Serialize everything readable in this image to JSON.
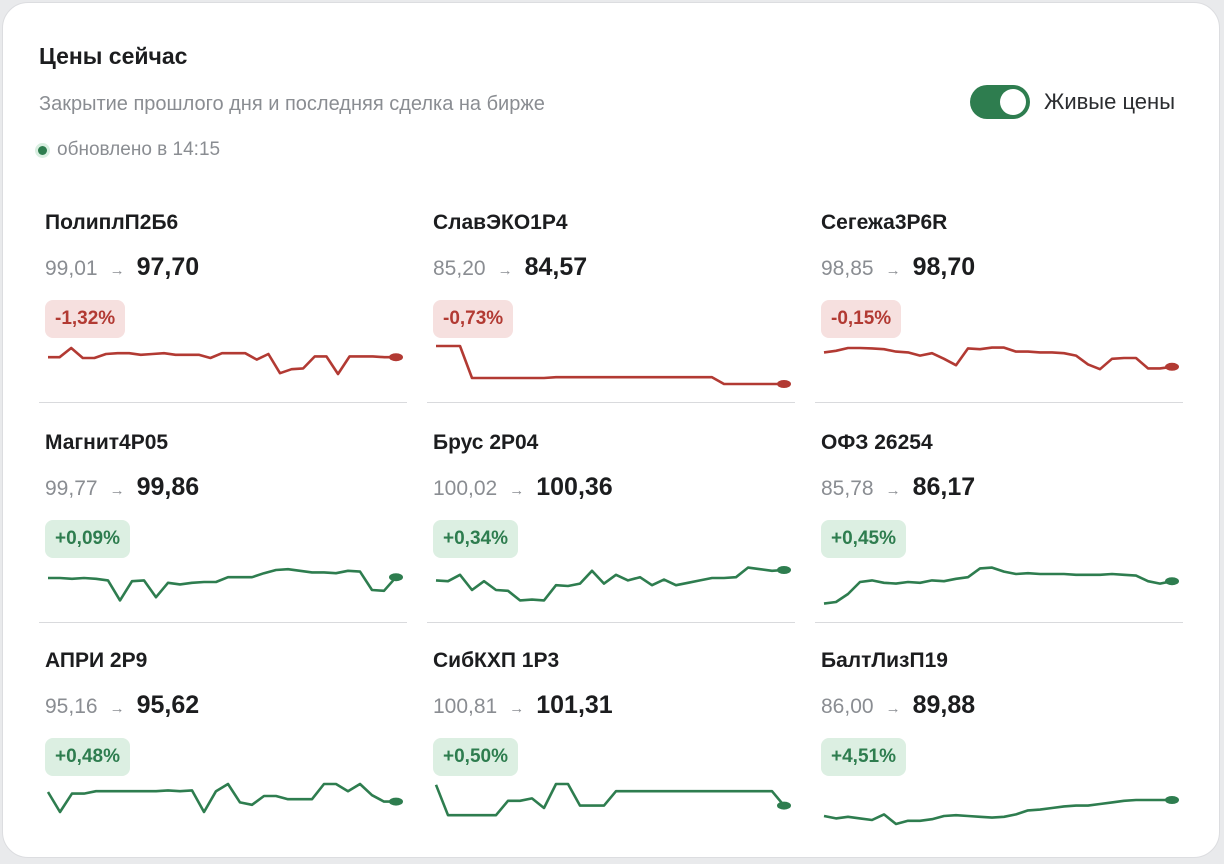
{
  "header": {
    "title": "Цены сейчас",
    "subtitle": "Закрытие прошлого дня и последняя сделка на бирже",
    "updated": "обновлено в 14:15",
    "live_toggle_label": "Живые цены",
    "live_toggle_on": true
  },
  "colors": {
    "negative": "#b23a33",
    "positive": "#2e7d4f",
    "negative_bg": "#f6e0df",
    "positive_bg": "#dcefe2"
  },
  "bonds": [
    {
      "name": "ПолиплП2Б6",
      "prev": "99,01",
      "last": "97,70",
      "change": "-1,32%",
      "direction": "neg",
      "spark": [
        0.72,
        0.72,
        0.95,
        0.7,
        0.7,
        0.8,
        0.82,
        0.82,
        0.78,
        0.8,
        0.82,
        0.78,
        0.78,
        0.78,
        0.7,
        0.82,
        0.82,
        0.82,
        0.66,
        0.8,
        0.32,
        0.42,
        0.44,
        0.74,
        0.74,
        0.3,
        0.74,
        0.74,
        0.74,
        0.72,
        0.72
      ]
    },
    {
      "name": "СлавЭКО1Р4",
      "prev": "85,20",
      "last": "84,57",
      "change": "-0,73%",
      "direction": "neg",
      "spark": [
        1.0,
        1.0,
        1.0,
        0.2,
        0.2,
        0.2,
        0.2,
        0.2,
        0.2,
        0.2,
        0.22,
        0.22,
        0.22,
        0.22,
        0.22,
        0.22,
        0.22,
        0.22,
        0.22,
        0.22,
        0.22,
        0.22,
        0.22,
        0.22,
        0.05,
        0.05,
        0.05,
        0.05,
        0.05,
        0.05
      ]
    },
    {
      "name": "Сегежа3Р6R",
      "prev": "98,85",
      "last": "98,70",
      "change": "-0,15%",
      "direction": "neg",
      "spark": [
        0.84,
        0.88,
        0.95,
        0.95,
        0.94,
        0.92,
        0.86,
        0.84,
        0.76,
        0.82,
        0.68,
        0.52,
        0.94,
        0.92,
        0.96,
        0.96,
        0.86,
        0.86,
        0.84,
        0.84,
        0.82,
        0.76,
        0.54,
        0.42,
        0.68,
        0.7,
        0.7,
        0.44,
        0.44,
        0.48
      ]
    },
    {
      "name": "Магнит4Р05",
      "prev": "99,77",
      "last": "99,86",
      "change": "+0,09%",
      "direction": "pos",
      "spark": [
        0.7,
        0.7,
        0.68,
        0.7,
        0.68,
        0.64,
        0.14,
        0.62,
        0.64,
        0.22,
        0.58,
        0.54,
        0.58,
        0.6,
        0.6,
        0.72,
        0.72,
        0.72,
        0.82,
        0.9,
        0.92,
        0.88,
        0.84,
        0.84,
        0.82,
        0.88,
        0.86,
        0.4,
        0.38,
        0.72
      ]
    },
    {
      "name": "Брус 2Р04",
      "prev": "100,02",
      "last": "100,36",
      "change": "+0,34%",
      "direction": "pos",
      "spark": [
        0.64,
        0.62,
        0.78,
        0.4,
        0.62,
        0.4,
        0.38,
        0.14,
        0.16,
        0.14,
        0.52,
        0.5,
        0.56,
        0.88,
        0.56,
        0.78,
        0.64,
        0.72,
        0.52,
        0.66,
        0.52,
        0.58,
        0.64,
        0.7,
        0.7,
        0.72,
        0.96,
        0.92,
        0.88,
        0.9
      ]
    },
    {
      "name": "ОФЗ 26254",
      "prev": "85,78",
      "last": "86,17",
      "change": "+0,45%",
      "direction": "pos",
      "spark": [
        0.06,
        0.1,
        0.3,
        0.6,
        0.64,
        0.58,
        0.56,
        0.6,
        0.58,
        0.64,
        0.62,
        0.68,
        0.72,
        0.94,
        0.96,
        0.86,
        0.8,
        0.82,
        0.8,
        0.8,
        0.8,
        0.78,
        0.78,
        0.78,
        0.8,
        0.78,
        0.76,
        0.62,
        0.56,
        0.62
      ]
    },
    {
      "name": "АПРИ 2Р9",
      "prev": "95,16",
      "last": "95,62",
      "change": "+0,48%",
      "direction": "pos",
      "spark": [
        0.8,
        0.3,
        0.76,
        0.76,
        0.82,
        0.82,
        0.82,
        0.82,
        0.82,
        0.82,
        0.84,
        0.82,
        0.84,
        0.3,
        0.82,
        1.0,
        0.54,
        0.48,
        0.7,
        0.7,
        0.62,
        0.62,
        0.62,
        1.0,
        1.0,
        0.82,
        1.0,
        0.72,
        0.56,
        0.56
      ]
    },
    {
      "name": "СибКХП 1Р3",
      "prev": "100,81",
      "last": "101,31",
      "change": "+0,50%",
      "direction": "pos",
      "spark": [
        0.98,
        0.22,
        0.22,
        0.22,
        0.22,
        0.22,
        0.58,
        0.58,
        0.64,
        0.4,
        1.0,
        1.0,
        0.46,
        0.46,
        0.46,
        0.82,
        0.82,
        0.82,
        0.82,
        0.82,
        0.82,
        0.82,
        0.82,
        0.82,
        0.82,
        0.82,
        0.82,
        0.82,
        0.82,
        0.46
      ]
    },
    {
      "name": "БалтЛизП19",
      "prev": "86,00",
      "last": "89,88",
      "change": "+4,51%",
      "direction": "pos",
      "spark": [
        0.2,
        0.14,
        0.18,
        0.14,
        0.1,
        0.24,
        0.0,
        0.08,
        0.08,
        0.12,
        0.2,
        0.22,
        0.2,
        0.18,
        0.16,
        0.18,
        0.24,
        0.34,
        0.36,
        0.4,
        0.44,
        0.46,
        0.46,
        0.5,
        0.54,
        0.58,
        0.6,
        0.6,
        0.6,
        0.6
      ]
    }
  ]
}
